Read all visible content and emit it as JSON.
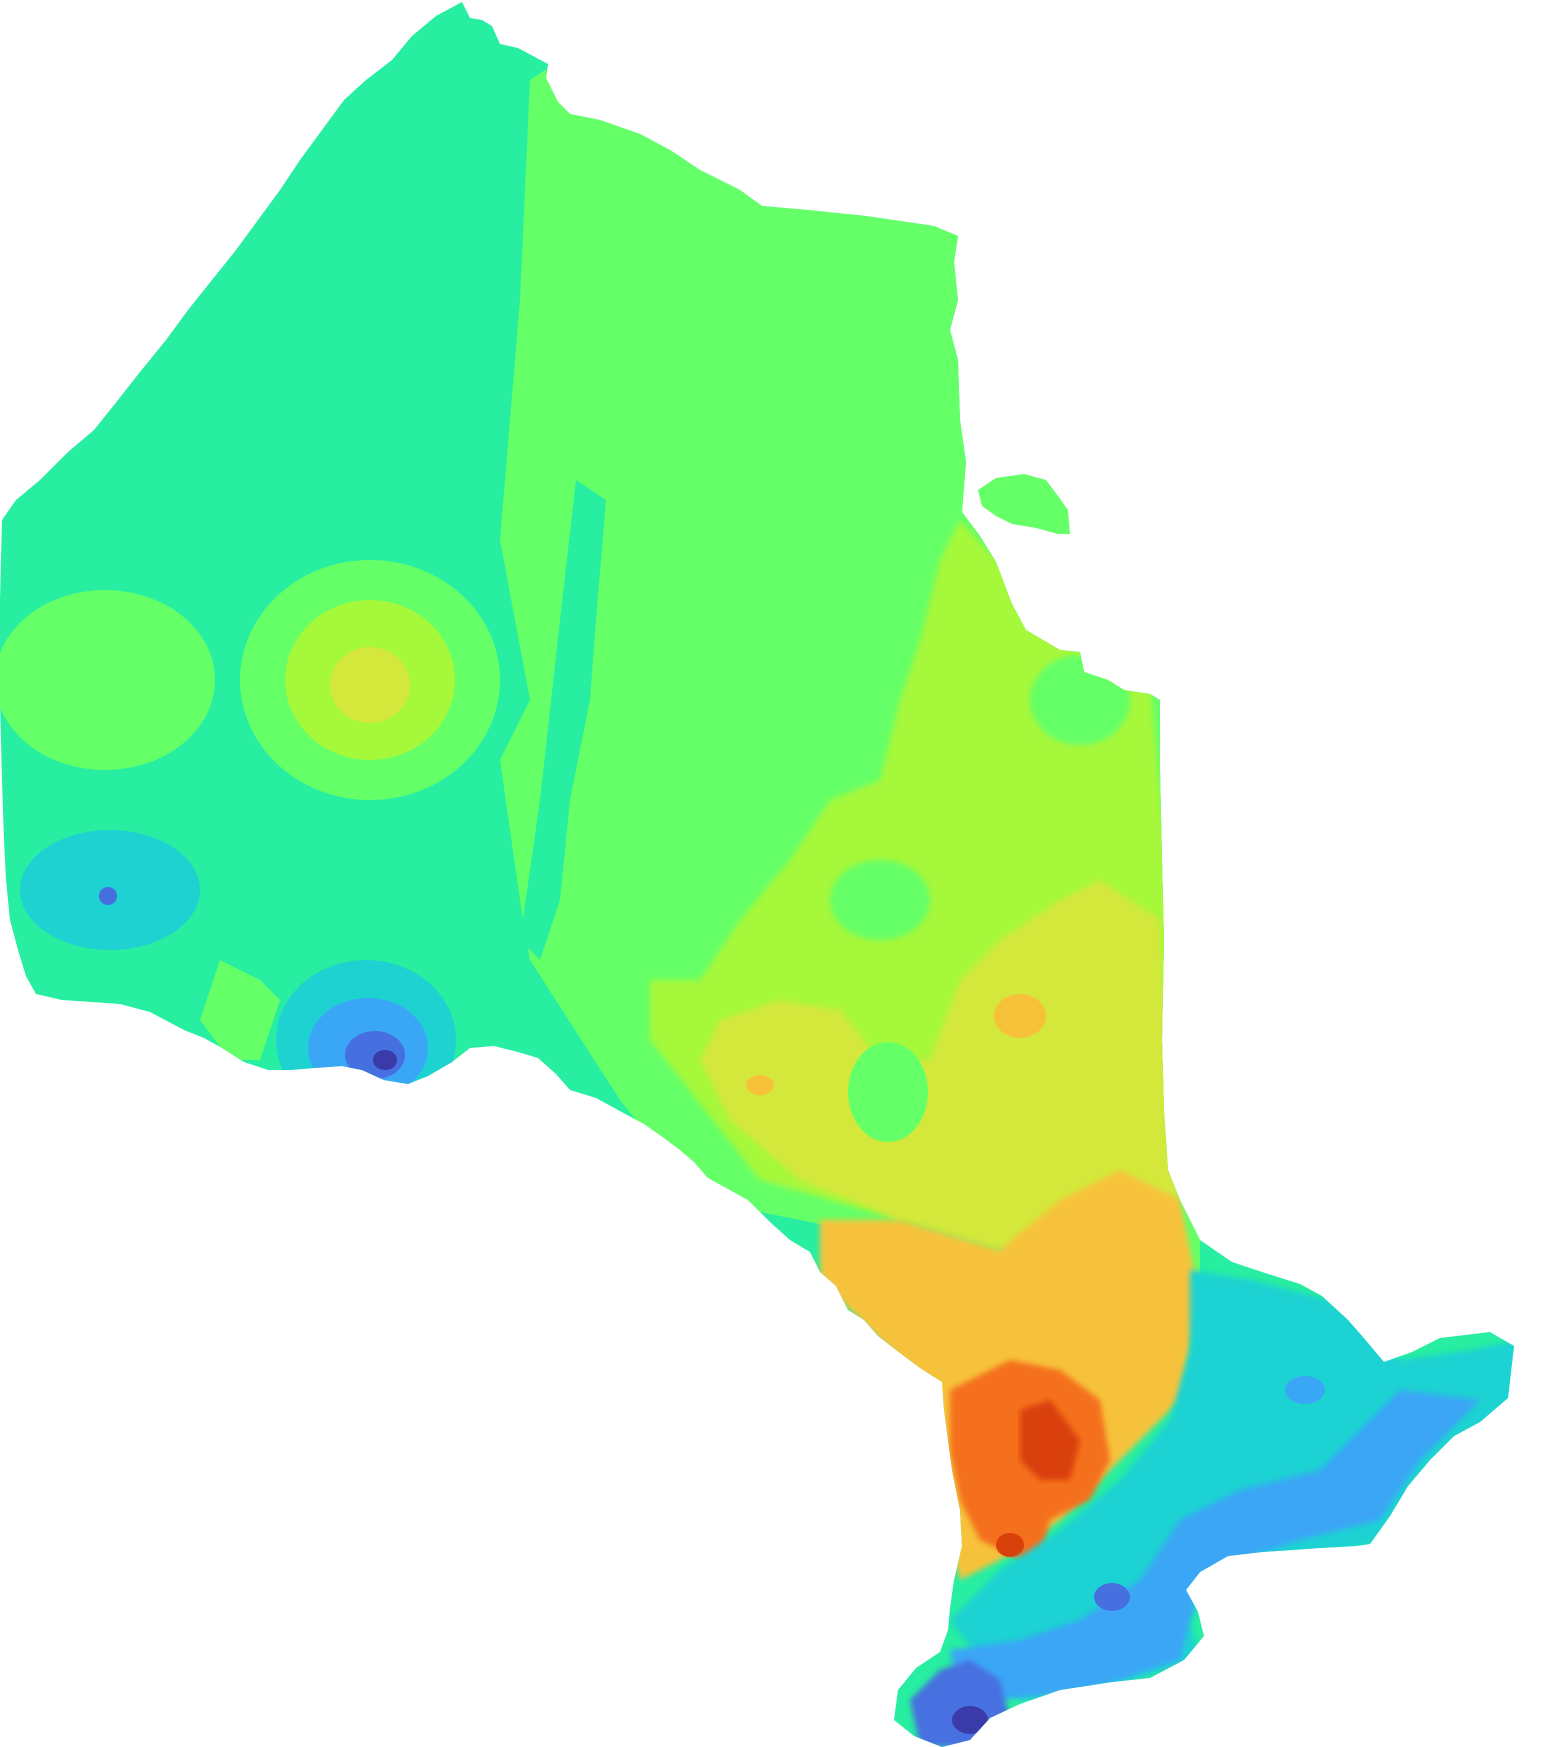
{
  "map": {
    "type": "choropleth-interpolated-surface",
    "region": "Ontario",
    "background_color": "#ffffff",
    "title": "",
    "legend": "none",
    "color_bands": [
      {
        "level": 1,
        "color": "#3a3aa8"
      },
      {
        "level": 2,
        "color": "#4670e0"
      },
      {
        "level": 3,
        "color": "#3aa6f6"
      },
      {
        "level": 4,
        "color": "#1fd2d2"
      },
      {
        "level": 5,
        "color": "#27eea0"
      },
      {
        "level": 6,
        "color": "#65ff68"
      },
      {
        "level": 7,
        "color": "#a6f83a"
      },
      {
        "level": 8,
        "color": "#d3e83a"
      },
      {
        "level": 9,
        "color": "#f7c23a"
      },
      {
        "level": 10,
        "color": "#f56f1c"
      },
      {
        "level": 11,
        "color": "#d9410a"
      }
    ]
  }
}
